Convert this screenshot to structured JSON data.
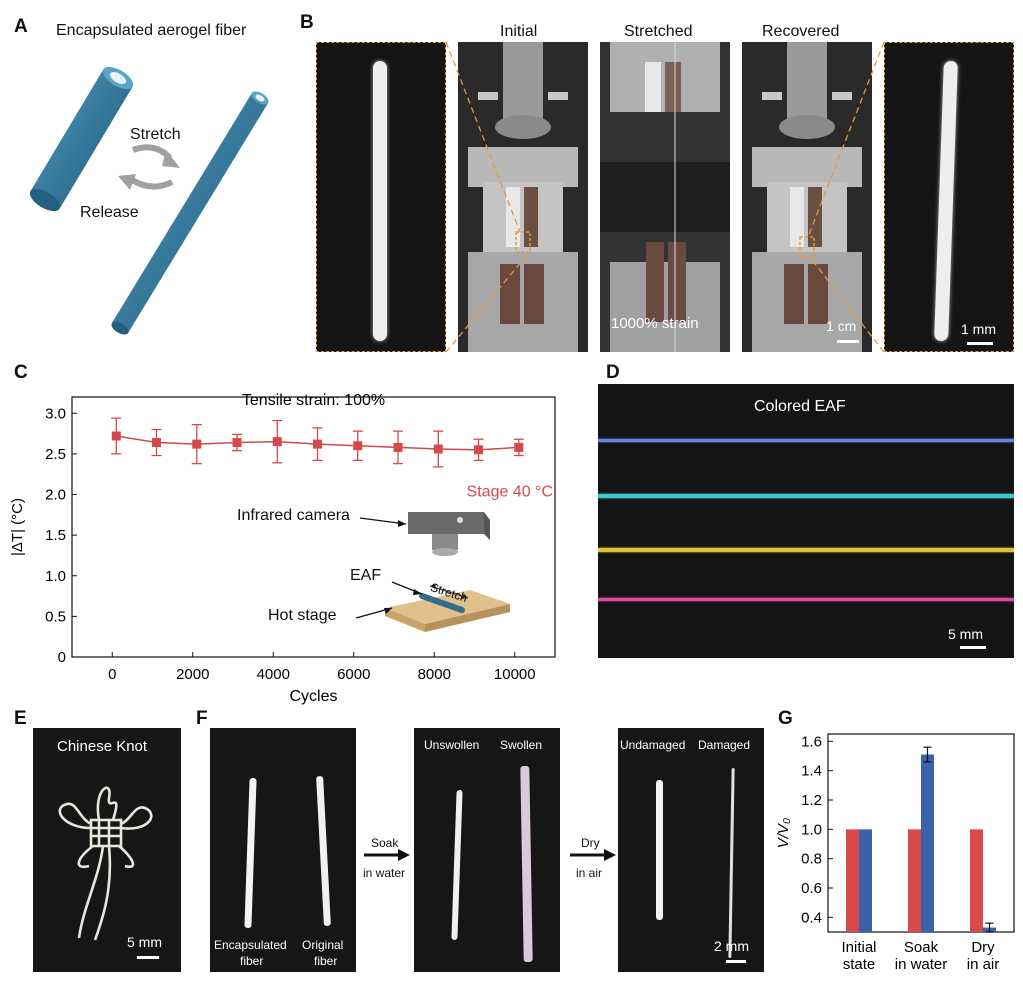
{
  "panels": {
    "A": {
      "letter": "A",
      "title": "Encapsulated aerogel fiber",
      "stretch": "Stretch",
      "release": "Release",
      "colors": {
        "fiber": "#2f6e8e",
        "fiber_light": "#3f87aa"
      }
    },
    "B": {
      "letter": "B",
      "initial": "Initial",
      "stretched": "Stretched",
      "recovered": "Recovered",
      "strain": "1000% strain",
      "scale_cm": "1 cm",
      "scale_mm": "1 mm"
    },
    "C": {
      "letter": "C"
    },
    "D": {
      "letter": "D",
      "title": "Colored EAF",
      "scale": "5 mm",
      "fiber_colors": [
        "#6f7fe0",
        "#3cc8c8",
        "#e0c23a",
        "#e04a9a"
      ]
    },
    "E": {
      "letter": "E",
      "title": "Chinese Knot",
      "scale": "5 mm"
    },
    "F": {
      "letter": "F",
      "encapsulated": "Encapsulated",
      "encapsulated2": "fiber",
      "original": "Original",
      "original2": "fiber",
      "soak1": "Soak",
      "soak2": "in water",
      "unswollen": "Unswollen",
      "swollen": "Swollen",
      "dry1": "Dry",
      "dry2": "in air",
      "undamaged": "Undamaged",
      "damaged": "Damaged",
      "scale": "2 mm"
    },
    "G": {
      "letter": "G"
    }
  },
  "chart_data": [
    {
      "id": "C",
      "type": "line",
      "title": "Tensile strain: 100%",
      "xlabel": "Cycles",
      "ylabel": "|ΔT| (°C)",
      "xlim": [
        -1000,
        11000
      ],
      "ylim": [
        0,
        3.2
      ],
      "xticks": [
        0,
        2000,
        4000,
        6000,
        8000,
        10000
      ],
      "yticks": [
        0,
        0.5,
        1.0,
        1.5,
        2.0,
        2.5,
        3.0
      ],
      "ytick_labels": [
        "0",
        "0.5",
        "1.0",
        "1.5",
        "2.0",
        "2.5",
        "3.0"
      ],
      "series": [
        {
          "name": "Stage 40 °C",
          "color": "#d44a4a",
          "x": [
            100,
            1100,
            2100,
            3100,
            4100,
            5100,
            6100,
            7100,
            8100,
            9100,
            10100
          ],
          "y": [
            2.72,
            2.64,
            2.62,
            2.64,
            2.65,
            2.62,
            2.6,
            2.58,
            2.56,
            2.55,
            2.58
          ],
          "err": [
            0.22,
            0.16,
            0.24,
            0.1,
            0.26,
            0.2,
            0.18,
            0.2,
            0.22,
            0.13,
            0.1
          ]
        }
      ],
      "inset_labels": {
        "camera": "Infrared camera",
        "eaf": "EAF",
        "stretch": "Stretch",
        "hot_stage": "Hot stage"
      }
    },
    {
      "id": "G",
      "type": "bar",
      "ylabel": "V/V₀",
      "ylim": [
        0.3,
        1.65
      ],
      "yticks": [
        0.4,
        0.6,
        0.8,
        1.0,
        1.2,
        1.4,
        1.6
      ],
      "ytick_labels": [
        "0.4",
        "0.6",
        "0.8",
        "1.0",
        "1.2",
        "1.4",
        "1.6"
      ],
      "categories": [
        [
          "Initial",
          "state"
        ],
        [
          "Soak",
          "in water"
        ],
        [
          "Dry",
          "in air"
        ]
      ],
      "series": [
        {
          "color": "#d94a4a",
          "values": [
            1.0,
            1.0,
            1.0
          ],
          "err": [
            0,
            0,
            0
          ]
        },
        {
          "color": "#3a62a8",
          "values": [
            1.0,
            1.51,
            0.33
          ],
          "err": [
            0,
            0.05,
            0.03
          ]
        }
      ]
    }
  ]
}
